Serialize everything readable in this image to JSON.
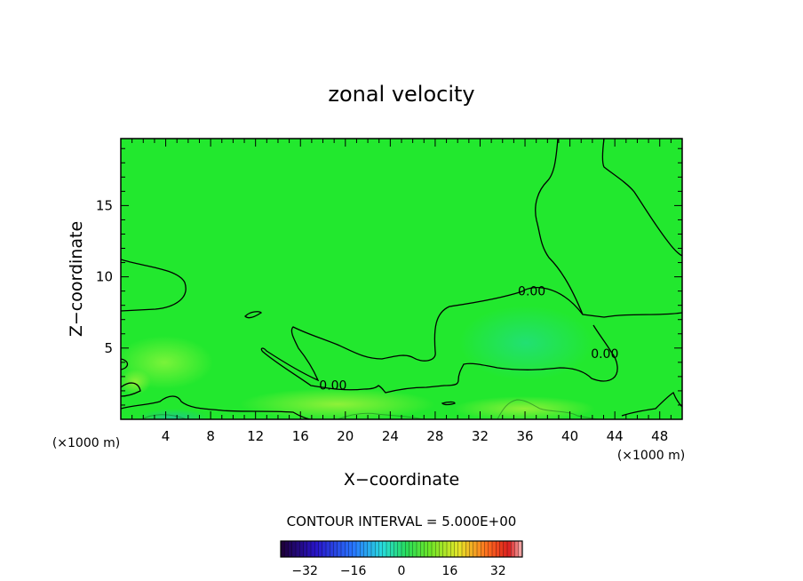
{
  "chart_data": {
    "type": "heatmap",
    "title": "zonal velocity",
    "xlabel": "X−coordinate",
    "ylabel": "Z−coordinate",
    "x_unit_left": "(×1000 m)",
    "x_unit_right": "(×1000 m)",
    "xlim": [
      0,
      50
    ],
    "ylim": [
      0,
      19.7
    ],
    "x_ticks": [
      4,
      8,
      12,
      16,
      20,
      24,
      28,
      32,
      36,
      40,
      44,
      48
    ],
    "x_tick_labels": [
      "4",
      "8",
      "12",
      "16",
      "20",
      "24",
      "28",
      "32",
      "36",
      "40",
      "44",
      "48"
    ],
    "y_ticks": [
      5,
      10,
      15
    ],
    "y_tick_labels": [
      "5",
      "10",
      "15"
    ],
    "contour_labels": [
      {
        "text": "0.00",
        "x": 36.6,
        "y": 8.7
      },
      {
        "text": "0.00",
        "x": 18.9,
        "y": 2.1
      },
      {
        "text": "0.00",
        "x": 43.1,
        "y": 4.3
      }
    ],
    "contour_interval_text": "CONTOUR INTERVAL = 5.000E+00",
    "colorbar": {
      "min": -40,
      "max": 40,
      "ticks": [
        -32,
        -16,
        0,
        16,
        32
      ],
      "tick_labels": [
        "−32",
        "−16",
        "0",
        "16",
        "32"
      ]
    },
    "colors": {
      "field": "#22e82e",
      "field_light": "#61f02e",
      "field_blue": "#1ed46a",
      "contour": "#000000"
    }
  }
}
